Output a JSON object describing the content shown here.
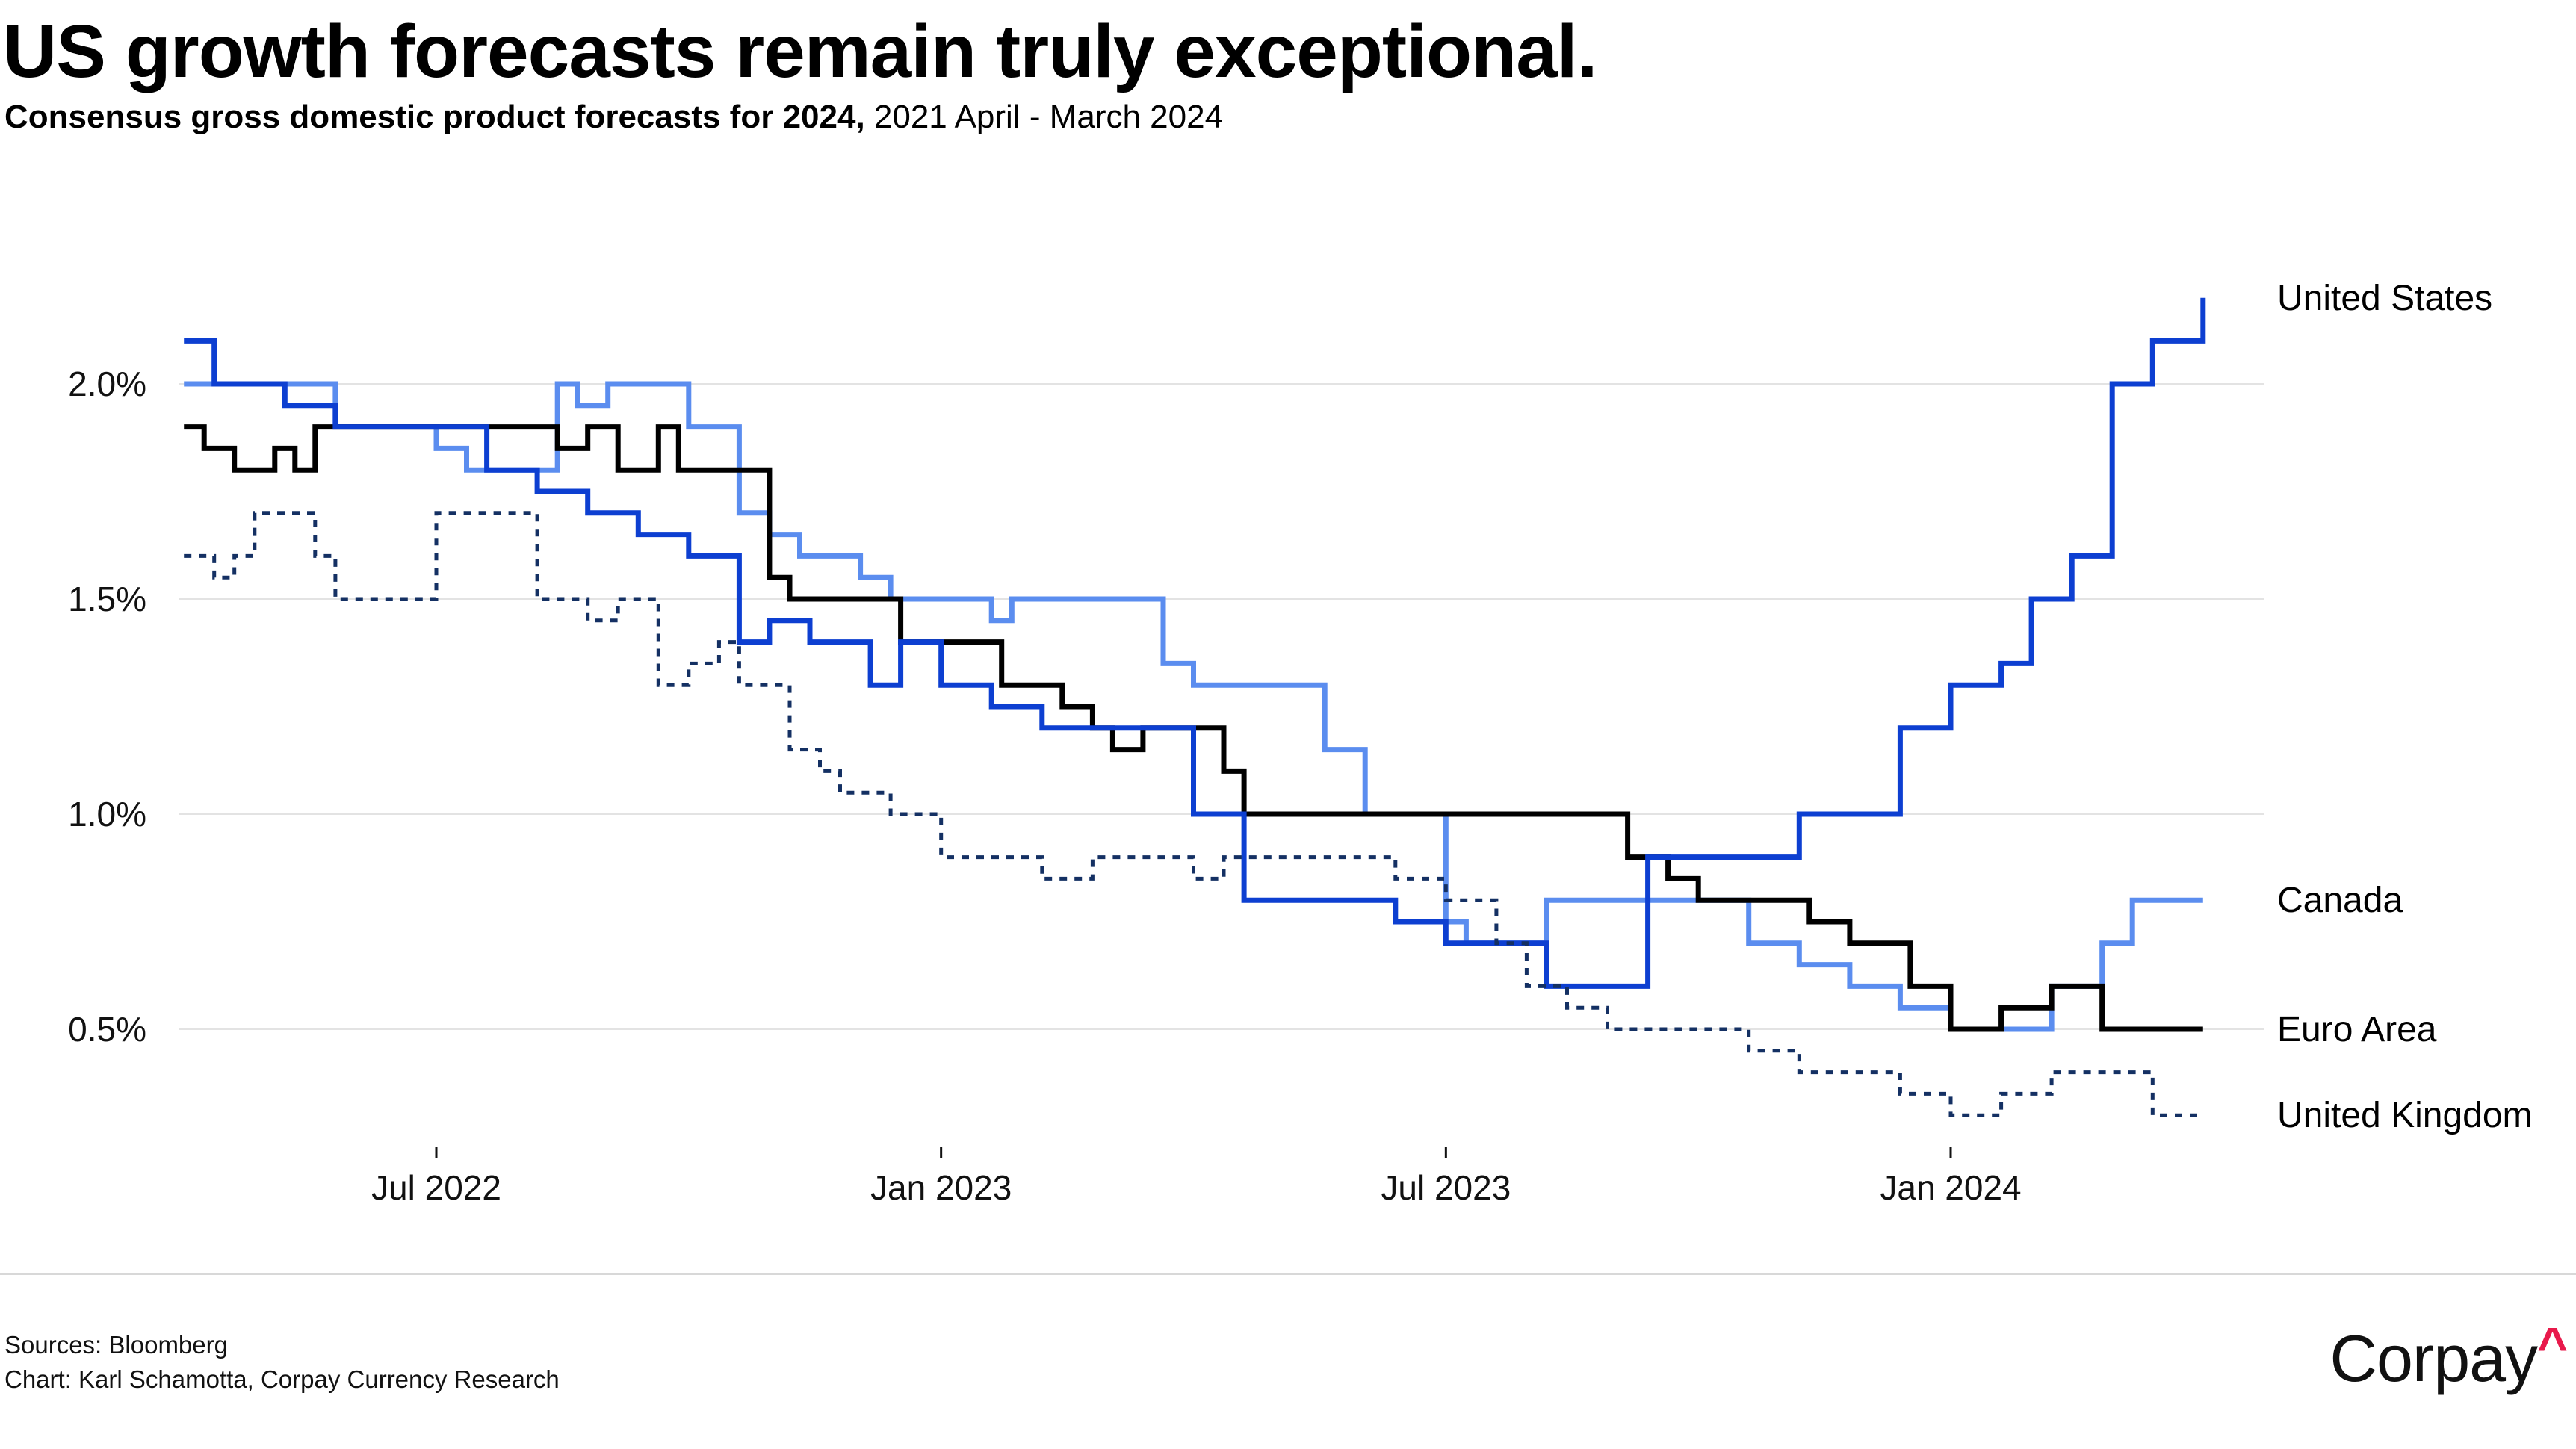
{
  "header": {
    "title": "US growth forecasts remain truly exceptional.",
    "subtitle_bold": "Consensus gross domestic product forecasts for 2024,",
    "subtitle_rest": " 2021 April - March 2024"
  },
  "footer": {
    "sources": "Sources: Bloomberg",
    "chart_credit": "Chart: Karl Schamotta, Corpay Currency Research",
    "logo_text": "Corpay",
    "logo_mark": "^"
  },
  "chart_data": {
    "type": "line",
    "title": "US growth forecasts remain truly exceptional.",
    "xlabel": "",
    "ylabel": "",
    "ylim": [
      0.3,
      2.4
    ],
    "xlim": [
      2022.25,
      2024.25
    ],
    "grid": true,
    "yticks": [
      {
        "value": 2.0,
        "label": "2.0%"
      },
      {
        "value": 1.5,
        "label": "1.5%"
      },
      {
        "value": 1.0,
        "label": "1.0%"
      },
      {
        "value": 0.5,
        "label": "0.5%"
      }
    ],
    "xticks": [
      {
        "value": 2022.5,
        "label": "Jul 2022"
      },
      {
        "value": 2023.0,
        "label": "Jan 2023"
      },
      {
        "value": 2023.5,
        "label": "Jul 2023"
      },
      {
        "value": 2024.0,
        "label": "Jan 2024"
      }
    ],
    "series": [
      {
        "name": "Canada",
        "color": "#5b8def",
        "dash": "",
        "x": [
          2022.25,
          2022.35,
          2022.4,
          2022.48,
          2022.5,
          2022.53,
          2022.58,
          2022.62,
          2022.64,
          2022.67,
          2022.72,
          2022.75,
          2022.78,
          2022.8,
          2022.83,
          2022.86,
          2022.88,
          2022.92,
          2022.95,
          2022.98,
          2023.05,
          2023.07,
          2023.1,
          2023.2,
          2023.22,
          2023.25,
          2023.3,
          2023.33,
          2023.38,
          2023.42,
          2023.45,
          2023.48,
          2023.5,
          2023.52,
          2023.55,
          2023.6,
          2023.65,
          2023.7,
          2023.75,
          2023.8,
          2023.85,
          2023.9,
          2023.95,
          2024.0,
          2024.07,
          2024.1,
          2024.15,
          2024.18,
          2024.25
        ],
        "y": [
          2.0,
          2.0,
          1.9,
          1.9,
          1.85,
          1.8,
          1.8,
          2.0,
          1.95,
          2.0,
          2.0,
          1.9,
          1.9,
          1.7,
          1.65,
          1.6,
          1.6,
          1.55,
          1.5,
          1.5,
          1.45,
          1.5,
          1.5,
          1.5,
          1.35,
          1.3,
          1.3,
          1.3,
          1.15,
          1.0,
          1.0,
          1.0,
          0.75,
          0.7,
          0.7,
          0.8,
          0.8,
          0.8,
          0.8,
          0.7,
          0.65,
          0.6,
          0.55,
          0.5,
          0.5,
          0.6,
          0.7,
          0.8,
          0.8
        ]
      },
      {
        "name": "Euro Area",
        "color": "#000000",
        "dash": "",
        "x": [
          2022.25,
          2022.27,
          2022.3,
          2022.32,
          2022.34,
          2022.36,
          2022.38,
          2022.4,
          2022.45,
          2022.5,
          2022.55,
          2022.62,
          2022.65,
          2022.68,
          2022.72,
          2022.74,
          2022.8,
          2022.83,
          2022.85,
          2022.88,
          2022.9,
          2022.93,
          2022.96,
          2023.0,
          2023.06,
          2023.1,
          2023.12,
          2023.15,
          2023.17,
          2023.2,
          2023.25,
          2023.28,
          2023.3,
          2023.33,
          2023.38,
          2023.45,
          2023.5,
          2023.55,
          2023.6,
          2023.65,
          2023.68,
          2023.72,
          2023.75,
          2023.78,
          2023.82,
          2023.86,
          2023.9,
          2023.93,
          2023.96,
          2024.0,
          2024.05,
          2024.08,
          2024.1,
          2024.15,
          2024.25
        ],
        "y": [
          1.9,
          1.85,
          1.8,
          1.8,
          1.85,
          1.8,
          1.9,
          1.9,
          1.9,
          1.9,
          1.9,
          1.85,
          1.9,
          1.8,
          1.9,
          1.8,
          1.8,
          1.55,
          1.5,
          1.5,
          1.5,
          1.5,
          1.4,
          1.4,
          1.3,
          1.3,
          1.25,
          1.2,
          1.15,
          1.2,
          1.2,
          1.1,
          1.0,
          1.0,
          1.0,
          1.0,
          1.0,
          1.0,
          1.0,
          1.0,
          0.9,
          0.85,
          0.8,
          0.8,
          0.8,
          0.75,
          0.7,
          0.7,
          0.6,
          0.5,
          0.55,
          0.55,
          0.6,
          0.5,
          0.5
        ]
      },
      {
        "name": "United States",
        "color": "#0d3fd1",
        "dash": "",
        "x": [
          2022.25,
          2022.28,
          2022.3,
          2022.35,
          2022.4,
          2022.45,
          2022.5,
          2022.55,
          2022.6,
          2022.65,
          2022.7,
          2022.75,
          2022.78,
          2022.8,
          2022.83,
          2022.87,
          2022.9,
          2022.93,
          2022.96,
          2023.0,
          2023.05,
          2023.1,
          2023.15,
          2023.2,
          2023.25,
          2023.3,
          2023.35,
          2023.4,
          2023.45,
          2023.5,
          2023.55,
          2023.6,
          2023.65,
          2023.7,
          2023.75,
          2023.8,
          2023.85,
          2023.9,
          2023.95,
          2024.0,
          2024.05,
          2024.08,
          2024.12,
          2024.16,
          2024.2,
          2024.25
        ],
        "y": [
          2.1,
          2.0,
          2.0,
          1.95,
          1.9,
          1.9,
          1.9,
          1.8,
          1.75,
          1.7,
          1.65,
          1.6,
          1.6,
          1.4,
          1.45,
          1.4,
          1.4,
          1.3,
          1.4,
          1.3,
          1.25,
          1.2,
          1.2,
          1.2,
          1.0,
          0.8,
          0.8,
          0.8,
          0.75,
          0.7,
          0.7,
          0.6,
          0.6,
          0.9,
          0.9,
          0.9,
          1.0,
          1.0,
          1.2,
          1.3,
          1.35,
          1.5,
          1.6,
          2.0,
          2.1,
          2.2
        ]
      },
      {
        "name": "United Kingdom",
        "color": "#143063",
        "dash": "10 10",
        "x": [
          2022.25,
          2022.28,
          2022.3,
          2022.32,
          2022.35,
          2022.38,
          2022.4,
          2022.44,
          2022.46,
          2022.5,
          2022.55,
          2022.6,
          2022.62,
          2022.65,
          2022.68,
          2022.7,
          2022.72,
          2022.75,
          2022.78,
          2022.8,
          2022.85,
          2022.88,
          2022.9,
          2022.95,
          2023.0,
          2023.05,
          2023.1,
          2023.15,
          2023.2,
          2023.25,
          2023.28,
          2023.3,
          2023.35,
          2023.4,
          2023.45,
          2023.5,
          2023.55,
          2023.58,
          2023.62,
          2023.66,
          2023.7,
          2023.75,
          2023.8,
          2023.85,
          2023.9,
          2023.95,
          2024.0,
          2024.05,
          2024.1,
          2024.15,
          2024.2,
          2024.25
        ],
        "y": [
          1.6,
          1.55,
          1.6,
          1.7,
          1.7,
          1.6,
          1.5,
          1.5,
          1.5,
          1.7,
          1.7,
          1.5,
          1.5,
          1.45,
          1.5,
          1.5,
          1.3,
          1.35,
          1.4,
          1.3,
          1.15,
          1.1,
          1.05,
          1.0,
          0.9,
          0.9,
          0.85,
          0.9,
          0.9,
          0.85,
          0.9,
          0.9,
          0.9,
          0.9,
          0.85,
          0.8,
          0.7,
          0.6,
          0.55,
          0.5,
          0.5,
          0.5,
          0.45,
          0.4,
          0.4,
          0.35,
          0.3,
          0.35,
          0.4,
          0.4,
          0.3,
          0.3
        ]
      }
    ],
    "end_labels": [
      "United States",
      "Canada",
      "Euro Area",
      "United Kingdom"
    ]
  }
}
